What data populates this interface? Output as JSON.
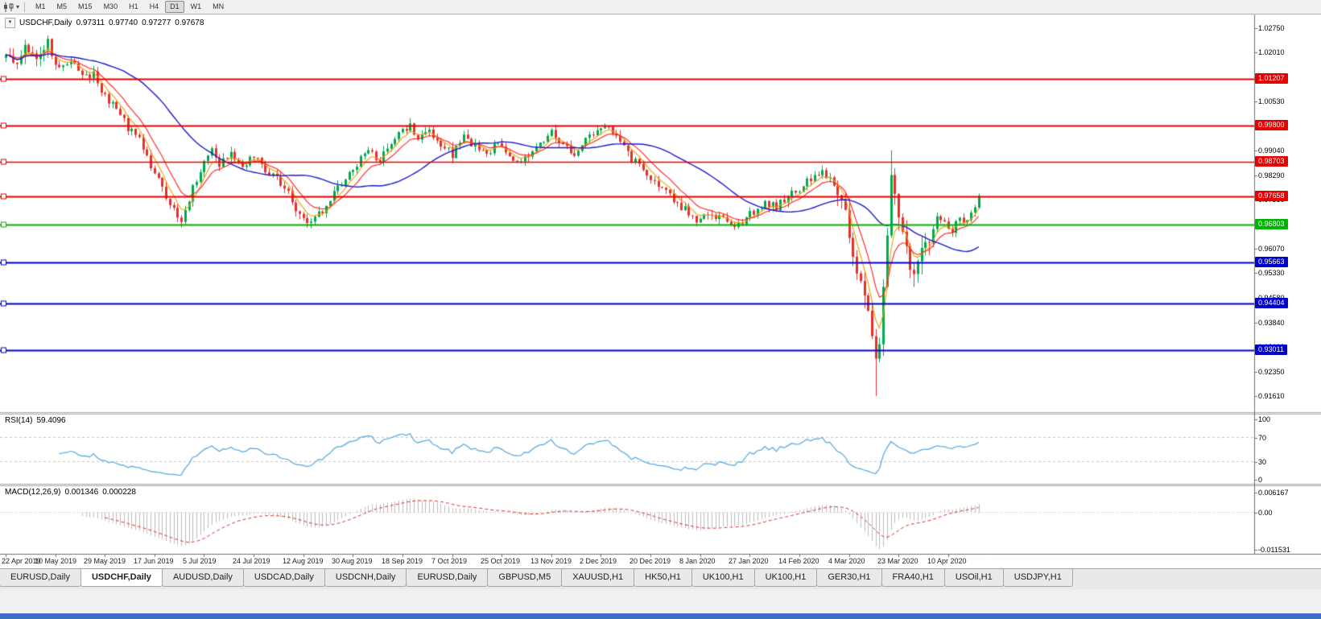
{
  "toolbar": {
    "timeframes": [
      "M1",
      "M5",
      "M15",
      "M30",
      "H1",
      "H4",
      "D1",
      "W1",
      "MN"
    ],
    "active_timeframe": "D1"
  },
  "icons": {
    "collapse": "▼",
    "dropdown": "▾",
    "chart_type": "candlestick-chart"
  },
  "main_panel": {
    "title": "USDCHF,Daily",
    "ohlc": {
      "open": "0.97311",
      "high": "0.97740",
      "low": "0.97277",
      "close": "0.97678"
    }
  },
  "rsi_panel": {
    "label": "RSI(14)",
    "value": "59.4096",
    "axis_labels": [
      "100",
      "70",
      "30",
      "0"
    ],
    "level_lines": [
      70,
      30
    ],
    "line_color": "#53a6dc"
  },
  "macd_panel": {
    "label": "MACD(12,26,9)",
    "value1": "0.001346",
    "value2": "0.000228",
    "axis_labels": [
      "0.006167",
      "0.00",
      "-0.011531"
    ],
    "histogram_color": "#bdbdbd",
    "signal_color": "#e03030"
  },
  "price_axis": {
    "ticks": [
      "1.02750",
      "1.02010",
      "1.01270",
      "1.00530",
      "0.99780",
      "0.99040",
      "0.98290",
      "0.97550",
      "0.96810",
      "0.96070",
      "0.95330",
      "0.94580",
      "0.93840",
      "0.93100",
      "0.92350",
      "0.91610"
    ]
  },
  "hlines": [
    {
      "price": 1.01207,
      "label": "1.01207",
      "color": "#e80000",
      "width": 2
    },
    {
      "price": 0.998,
      "label": "0.99800",
      "color": "#e80000",
      "width": 2
    },
    {
      "price": 0.98703,
      "label": "0.98703",
      "color": "#e80000",
      "width": 1.5
    },
    {
      "price": 0.97658,
      "label": "0.97658",
      "color": "#e80000",
      "width": 2
    },
    {
      "price": 0.96803,
      "label": "0.96803",
      "color": "#00b300",
      "width": 2
    },
    {
      "price": 0.95663,
      "label": "0.95663",
      "color": "#0000cc",
      "width": 2
    },
    {
      "price": 0.94404,
      "label": "0.94404",
      "color": "#0000cc",
      "width": 2
    },
    {
      "price": 0.93011,
      "label": "0.93011",
      "color": "#0000cc",
      "width": 2
    }
  ],
  "date_axis": [
    "22 Apr 2019",
    "10 May 2019",
    "29 May 2019",
    "17 Jun 2019",
    "5 Jul 2019",
    "24 Jul 2019",
    "12 Aug 2019",
    "30 Aug 2019",
    "18 Sep 2019",
    "7 Oct 2019",
    "25 Oct 2019",
    "13 Nov 2019",
    "2 Dec 2019",
    "20 Dec 2019",
    "8 Jan 2020",
    "27 Jan 2020",
    "14 Feb 2020",
    "4 Mar 2020",
    "23 Mar 2020",
    "10 Apr 2020"
  ],
  "tabs": {
    "items": [
      "EURUSD,Daily",
      "USDCHF,Daily",
      "AUDUSD,Daily",
      "USDCAD,Daily",
      "USDCNH,Daily",
      "EURUSD,Daily",
      "GBPUSD,M5",
      "XAUUSD,H1",
      "HK50,H1",
      "UK100,H1",
      "UK100,H1",
      "GER30,H1",
      "FRA40,H1",
      "USOil,H1",
      "USDJPY,H1"
    ],
    "active_index": 1
  },
  "chart_data": {
    "type": "candlestick",
    "symbol": "USDCHF",
    "timeframe": "Daily",
    "title": "USDCHF,Daily 0.97311 0.97740 0.97277 0.97678",
    "last_ohlc": {
      "open": 0.97311,
      "high": 0.9774,
      "low": 0.97277,
      "close": 0.97678
    },
    "y_range": [
      0.9161,
      1.0275
    ],
    "bars": 256,
    "bars_per_label": 13,
    "seed": 20200424,
    "up_color": "#00a94f",
    "down_color": "#e53030",
    "moving_averages": [
      {
        "type": "ema",
        "period": 5,
        "color": "#e8a200"
      },
      {
        "type": "ema",
        "period": 10,
        "color": "#ff2020"
      },
      {
        "type": "sma",
        "period": 32,
        "color": "#1a1acd"
      }
    ],
    "volatility_regions": [
      [
        0,
        12,
        1.5
      ],
      [
        218,
        242,
        2.4
      ]
    ],
    "price_waypoints": [
      [
        0,
        1.0185
      ],
      [
        3,
        1.016
      ],
      [
        5,
        1.023
      ],
      [
        8,
        1.0195
      ],
      [
        11,
        1.0225
      ],
      [
        14,
        1.015
      ],
      [
        17,
        1.0185
      ],
      [
        20,
        1.0125
      ],
      [
        23,
        1.014
      ],
      [
        26,
        1.0065
      ],
      [
        29,
        1.003
      ],
      [
        32,
        0.9975
      ],
      [
        35,
        0.9935
      ],
      [
        38,
        0.986
      ],
      [
        41,
        0.979
      ],
      [
        44,
        0.972
      ],
      [
        46,
        0.9698
      ],
      [
        48,
        0.976
      ],
      [
        51,
        0.9845
      ],
      [
        54,
        0.9905
      ],
      [
        56,
        0.986
      ],
      [
        59,
        0.9895
      ],
      [
        62,
        0.986
      ],
      [
        65,
        0.989
      ],
      [
        68,
        0.9845
      ],
      [
        71,
        0.982
      ],
      [
        74,
        0.9775
      ],
      [
        77,
        0.9705
      ],
      [
        80,
        0.968
      ],
      [
        83,
        0.9725
      ],
      [
        86,
        0.9775
      ],
      [
        89,
        0.9815
      ],
      [
        92,
        0.9865
      ],
      [
        95,
        0.9905
      ],
      [
        98,
        0.9875
      ],
      [
        101,
        0.9925
      ],
      [
        104,
        0.996
      ],
      [
        106,
        0.9975
      ],
      [
        108,
        0.993
      ],
      [
        111,
        0.9965
      ],
      [
        114,
        0.9925
      ],
      [
        117,
        0.989
      ],
      [
        120,
        0.9945
      ],
      [
        123,
        0.9915
      ],
      [
        126,
        0.9885
      ],
      [
        129,
        0.993
      ],
      [
        132,
        0.9895
      ],
      [
        135,
        0.9865
      ],
      [
        138,
        0.9905
      ],
      [
        141,
        0.9935
      ],
      [
        143,
        0.996
      ],
      [
        146,
        0.9915
      ],
      [
        149,
        0.989
      ],
      [
        152,
        0.9935
      ],
      [
        155,
        0.9965
      ],
      [
        157,
        0.9985
      ],
      [
        160,
        0.994
      ],
      [
        163,
        0.9895
      ],
      [
        166,
        0.9855
      ],
      [
        169,
        0.9825
      ],
      [
        172,
        0.979
      ],
      [
        175,
        0.9755
      ],
      [
        178,
        0.9725
      ],
      [
        181,
        0.9685
      ],
      [
        184,
        0.972
      ],
      [
        187,
        0.97
      ],
      [
        190,
        0.9672
      ],
      [
        193,
        0.969
      ],
      [
        196,
        0.9722
      ],
      [
        199,
        0.975
      ],
      [
        202,
        0.9732
      ],
      [
        205,
        0.9768
      ],
      [
        208,
        0.9782
      ],
      [
        211,
        0.9822
      ],
      [
        214,
        0.9845
      ],
      [
        216,
        0.982
      ],
      [
        218,
        0.978
      ],
      [
        220,
        0.97
      ],
      [
        222,
        0.961
      ],
      [
        224,
        0.95
      ],
      [
        226,
        0.94
      ],
      [
        227,
        0.933
      ],
      [
        228,
        0.9255
      ],
      [
        229,
        0.933
      ],
      [
        230,
        0.949
      ],
      [
        231,
        0.966
      ],
      [
        232,
        0.984
      ],
      [
        233,
        0.978
      ],
      [
        234,
        0.97
      ],
      [
        236,
        0.96
      ],
      [
        238,
        0.9528
      ],
      [
        240,
        0.9585
      ],
      [
        242,
        0.9645
      ],
      [
        244,
        0.9705
      ],
      [
        246,
        0.9682
      ],
      [
        248,
        0.966
      ],
      [
        250,
        0.9706
      ],
      [
        252,
        0.9685
      ],
      [
        254,
        0.9742
      ],
      [
        255,
        0.9768
      ]
    ],
    "special_bars": {
      "228": {
        "l": 0.9161
      },
      "232": {
        "h": 0.9905
      },
      "255": {
        "o": 0.97311,
        "h": 0.9774,
        "l": 0.97277,
        "c": 0.97678
      }
    },
    "indicators": {
      "rsi_period": 14,
      "macd_fast": 12,
      "macd_slow": 26,
      "macd_signal": 9
    }
  }
}
